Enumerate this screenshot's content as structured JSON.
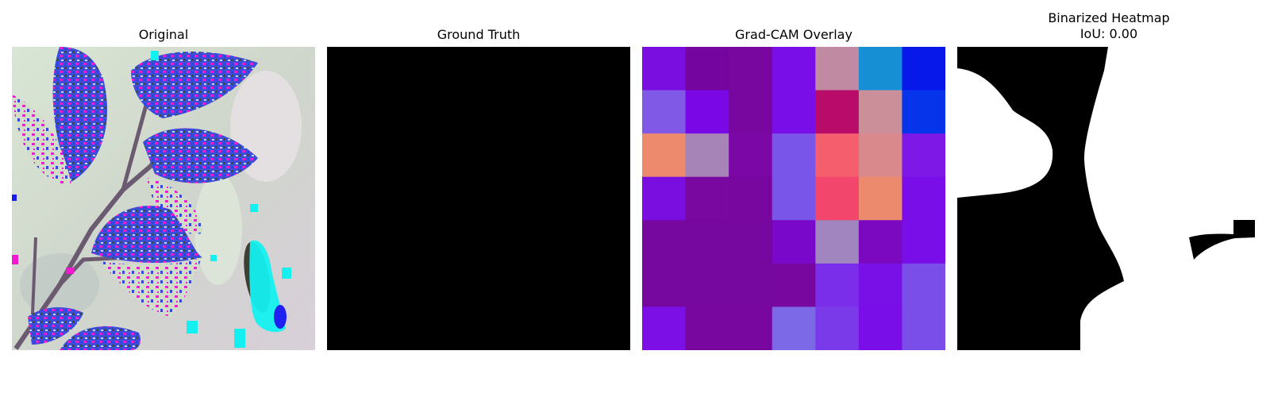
{
  "panels": {
    "original": {
      "title": "Original"
    },
    "ground_truth": {
      "title": "Ground Truth"
    },
    "gradcam": {
      "title": "Grad-CAM Overlay",
      "grid": [
        [
          "#7a0ee0",
          "#74069f",
          "#77079f",
          "#7a0ee8",
          "#c08aa2",
          "#168fd5",
          "#0618ea"
        ],
        [
          "#8059e6",
          "#7a07e6",
          "#77079f",
          "#790ee8",
          "#b80b6a",
          "#cb8f99",
          "#0634ea"
        ],
        [
          "#ed8a6d",
          "#a784b8",
          "#7a07a6",
          "#7a55e9",
          "#f55e6c",
          "#d9898c",
          "#7e18e6"
        ],
        [
          "#7a0ee0",
          "#78089f",
          "#77079f",
          "#7a55e9",
          "#f2466c",
          "#ec8a6d",
          "#7a0ee8"
        ],
        [
          "#76079f",
          "#76079f",
          "#76079f",
          "#7908ca",
          "#a085be",
          "#7a09c0",
          "#7a0ee8"
        ],
        [
          "#76079f",
          "#76079f",
          "#76079f",
          "#77079f",
          "#7a2ee9",
          "#7a10e8",
          "#7a4ee8"
        ],
        [
          "#7c0fe6",
          "#77079f",
          "#77079f",
          "#7b69e8",
          "#7a3ae9",
          "#7a0ee8",
          "#7a4ee8"
        ]
      ]
    },
    "binarized": {
      "title": "Binarized Heatmap\nIoU: 0.00"
    }
  }
}
